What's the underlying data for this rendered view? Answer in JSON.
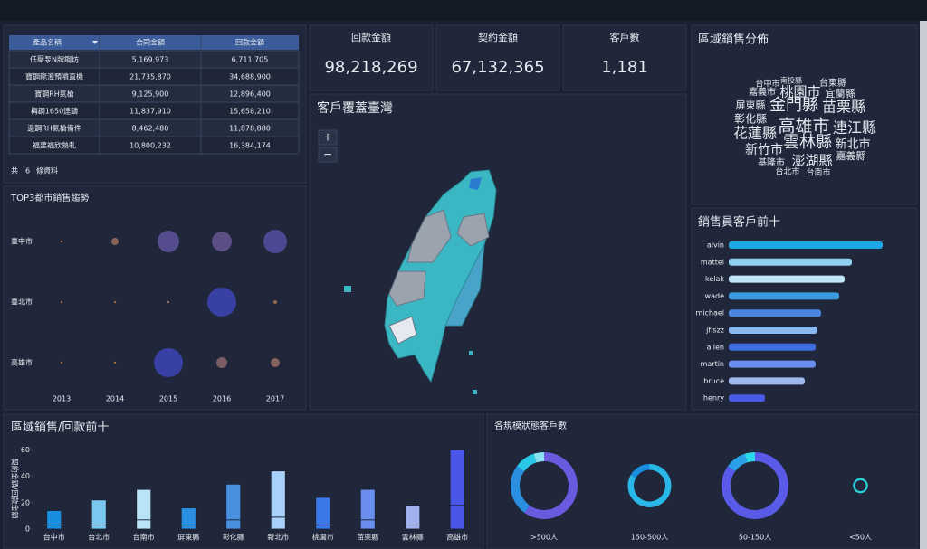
{
  "table": {
    "headers": [
      "產品名稱",
      "合同金額",
      "回款金額"
    ],
    "rows": [
      [
        "低壓泵N牌鋼坊",
        "5,169,973",
        "6,711,705"
      ],
      [
        "寶鋼龍澄預噴直機",
        "21,735,870",
        "34,688,900"
      ],
      [
        "寶鋼RH氣槍",
        "9,125,900",
        "12,896,400"
      ],
      [
        "梅鋼1650連鑄",
        "11,837,910",
        "15,658,210"
      ],
      [
        "邊鋼RH氣槍備件",
        "8,462,480",
        "11,878,880"
      ],
      [
        "福建福欣熱軋",
        "10,800,232",
        "16,384,174"
      ]
    ],
    "footer": [
      "共",
      "6",
      "條資料"
    ]
  },
  "kpis": [
    {
      "label": "回款金額",
      "value": "98,218,269",
      "color": "#2a9fd8"
    },
    {
      "label": "契約金額",
      "value": "67,132,365",
      "color": "#c0505a"
    },
    {
      "label": "客戶數",
      "value": "1,181",
      "color": "#f0b040"
    }
  ],
  "map": {
    "title": "客戶覆蓋臺灣",
    "zoom_in": "+",
    "zoom_out": "−"
  },
  "chart_data": [
    {
      "type": "wordcloud",
      "title": "區域銷售分佈",
      "words": [
        "台中市",
        "南投縣",
        "台東縣",
        "嘉義市",
        "桃園市",
        "宜蘭縣",
        "屏東縣",
        "金門縣",
        "苗栗縣",
        "彰化縣",
        "高雄市",
        "連江縣",
        "花蓮縣",
        "雲林縣",
        "新北市",
        "新竹市",
        "基隆市",
        "澎湖縣",
        "嘉義縣",
        "台北市",
        "台南市"
      ],
      "sizes": [
        9,
        8,
        10,
        10,
        15,
        11,
        11,
        18,
        16,
        12,
        19,
        16,
        16,
        18,
        13,
        14,
        10,
        15,
        11,
        9,
        9
      ],
      "colors": [
        "#4a8fe0",
        "#6a6ad8",
        "#4a9fe0",
        "#c8d0e8",
        "#7a9ee0",
        "#c8d8f0",
        "#6a6ad8",
        "#3aa0e8",
        "#5a8ee8",
        "#7a6ad8",
        "#c8d8f0",
        "#c8d8f0",
        "#2aa8e0",
        "#7a9ee8",
        "#c8d8f0",
        "#4a7ae0",
        "#6a6ad8",
        "#c8d8f0",
        "#6a6ad8",
        "#c8d0e8",
        "#3a8fe0"
      ]
    },
    {
      "type": "bubble",
      "title": "TOP3都市銷售趨勢",
      "categories": [
        "2013",
        "2014",
        "2015",
        "2016",
        "2017"
      ],
      "series": [
        {
          "name": "臺中市",
          "values": [
            1,
            4,
            12,
            11,
            13
          ]
        },
        {
          "name": "臺北市",
          "values": [
            1,
            1,
            1,
            16,
            2
          ]
        },
        {
          "name": "高雄市",
          "values": [
            1,
            1,
            16,
            6,
            5
          ]
        }
      ],
      "color_range": [
        "#c8823c",
        "#3e47c2"
      ]
    },
    {
      "type": "bar",
      "orientation": "horizontal",
      "title": "銷售員客戶前十",
      "categories": [
        "alvin",
        "mattel",
        "kelak",
        "wade",
        "michael",
        "jflszz",
        "allen",
        "martin",
        "bruce",
        "henry"
      ],
      "values": [
        85,
        68,
        64,
        61,
        51,
        49,
        48,
        48,
        42,
        20
      ],
      "colors": [
        "#1ea7e6",
        "#8fd0f0",
        "#c0e8f8",
        "#3a9be0",
        "#4a86e0",
        "#8ab8f0",
        "#3e6ee0",
        "#6a8ef0",
        "#a0b8f0",
        "#4a5ae8"
      ]
    },
    {
      "type": "bar",
      "stacked": true,
      "title": "區域銷售/回款前十",
      "ylabel": "契約金額/回款金額",
      "categories": [
        "台中市",
        "台北市",
        "台南市",
        "屏東縣",
        "彰化縣",
        "新北市",
        "桃園市",
        "苗栗縣",
        "雲林縣",
        "高雄市"
      ],
      "series": [
        {
          "values": [
            3,
            3,
            7,
            3,
            7,
            9,
            3,
            7,
            3,
            18
          ]
        },
        {
          "values": [
            11,
            19,
            23,
            13,
            27,
            35,
            21,
            23,
            15,
            42
          ]
        }
      ],
      "colors": [
        "#1a8fe0",
        "#7ac8f0",
        "#b8e4f8",
        "#2a8fe0",
        "#4a90e0",
        "#a8d0f8",
        "#3a78e8",
        "#6a8ef0",
        "#a0b0f0",
        "#4a56e8"
      ],
      "ylim": [
        0,
        65
      ],
      "yticks": [
        0,
        20,
        40,
        60
      ]
    },
    {
      "type": "pie",
      "donut": true,
      "title": "各規模狀態客戶數",
      "categories": [
        ">500人",
        "150-500人",
        "50-150人",
        "<50人"
      ],
      "values": [
        [
          60,
          25,
          10,
          5
        ],
        [
          35,
          7
        ],
        [
          85,
          10,
          5
        ],
        [
          5
        ]
      ],
      "colors": [
        [
          "#6a5ae0",
          "#2a8fe0",
          "#2ac8e8",
          "#8ae0f0"
        ],
        [
          "#2ab8e8",
          "#1a8fe0"
        ],
        [
          "#5a5ae8",
          "#2aa0e8",
          "#2ad8e8"
        ],
        [
          "#2ad0d8"
        ]
      ]
    }
  ]
}
